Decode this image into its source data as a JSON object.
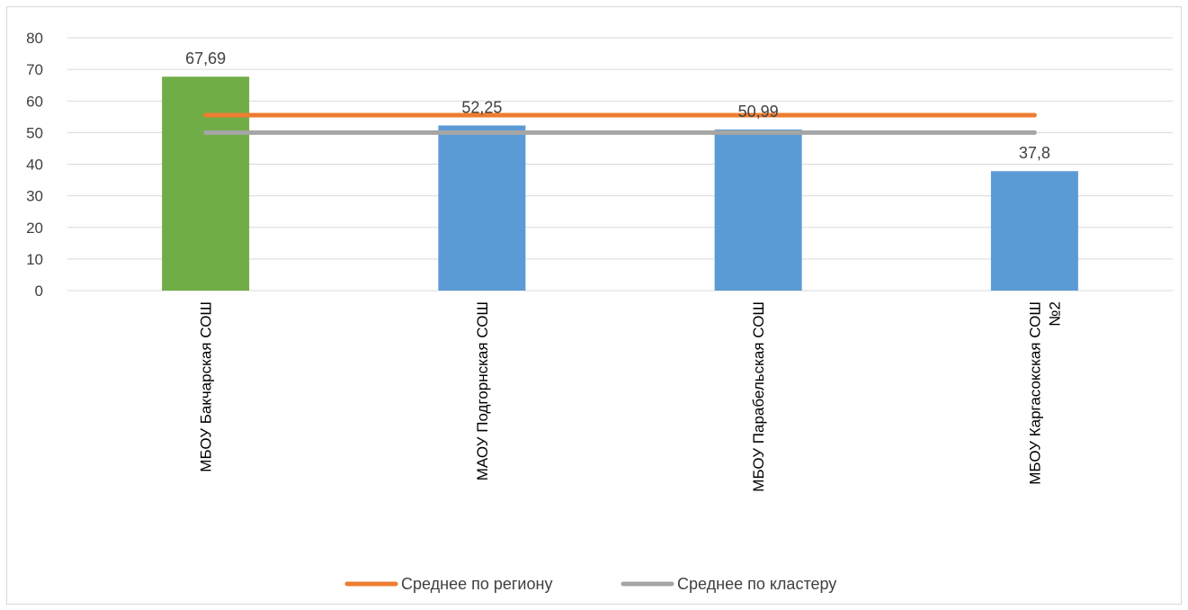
{
  "chart_data": {
    "type": "bar",
    "categories": [
      [
        "МБОУ Бакчарская СОШ"
      ],
      [
        "МАОУ Подгорнская СОШ"
      ],
      [
        "МБОУ Парабельская СОШ"
      ],
      [
        "МБОУ Каргасокская СОШ",
        "№2"
      ]
    ],
    "values": [
      67.69,
      52.25,
      50.99,
      37.8
    ],
    "data_labels": [
      "67,69",
      "52,25",
      "50,99",
      "37,8"
    ],
    "bar_colors": [
      "#70ad47",
      "#5b9bd5",
      "#5b9bd5",
      "#5b9bd5"
    ],
    "ylim": [
      0,
      80
    ],
    "y_ticks": [
      0,
      10,
      20,
      30,
      40,
      50,
      60,
      70,
      80
    ],
    "grid": true,
    "reference_lines": [
      {
        "name": "Среднее по региону",
        "value": 55.5,
        "color": "#ed7d31"
      },
      {
        "name": "Среднее по кластеру",
        "value": 50.0,
        "color": "#a5a5a5"
      }
    ],
    "legend_position": "bottom"
  }
}
